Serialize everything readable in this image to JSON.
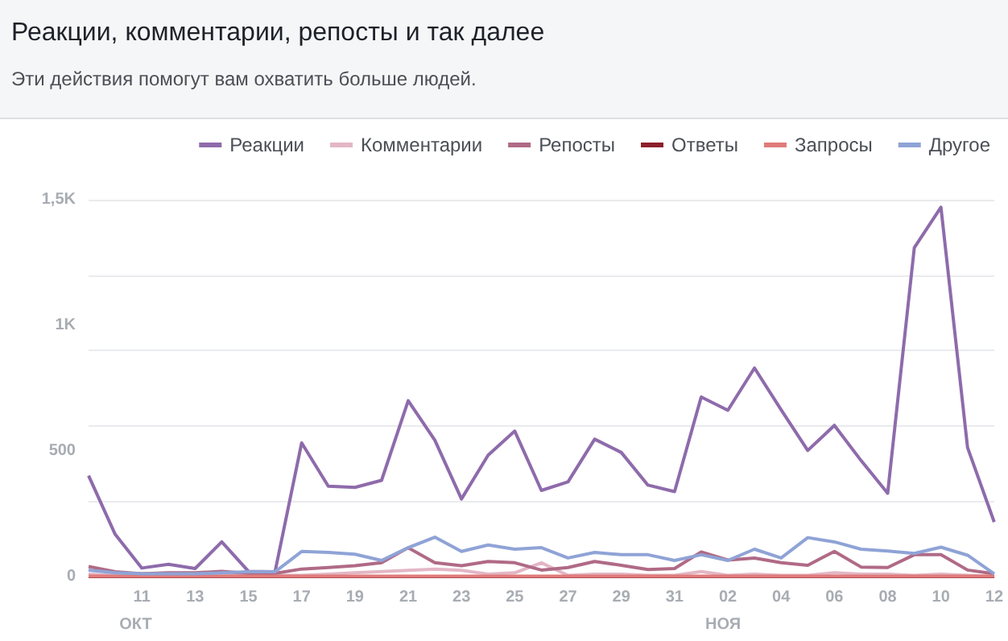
{
  "chart_data": {
    "type": "line",
    "title": "Реакции, комментарии, репосты и так далее",
    "subtitle": "Эти действия помогут вам охватить больше людей.",
    "categories": [
      null,
      null,
      "11",
      null,
      "13",
      null,
      "15",
      null,
      "17",
      null,
      "19",
      null,
      "21",
      null,
      "23",
      null,
      "25",
      null,
      "27",
      null,
      "29",
      null,
      "31",
      null,
      "02",
      null,
      "04",
      null,
      "06",
      null,
      "08",
      null,
      "10",
      null,
      "12"
    ],
    "series": [
      {
        "name": "Реакции",
        "color": "#8e6bab",
        "values": [
          402,
          168,
          34,
          49,
          32,
          138,
          21,
          19,
          532,
          360,
          355,
          383,
          700,
          543,
          309,
          483,
          579,
          343,
          377,
          547,
          494,
          364,
          338,
          715,
          662,
          830,
          664,
          502,
          602,
          462,
          332,
          1309,
          1470,
          513,
          217
        ]
      },
      {
        "name": "Комментарии",
        "color": "#e3b6c6",
        "values": [
          10,
          5,
          5,
          5,
          5,
          10,
          5,
          5,
          5,
          10,
          15,
          20,
          25,
          30,
          25,
          10,
          15,
          55,
          5,
          10,
          10,
          5,
          5,
          20,
          5,
          10,
          5,
          5,
          15,
          10,
          10,
          5,
          10,
          5,
          0
        ]
      },
      {
        "name": "Репосты",
        "color": "#b06a86",
        "values": [
          40,
          19,
          11,
          15,
          15,
          21,
          13,
          13,
          30,
          36,
          43,
          55,
          115,
          55,
          43,
          60,
          55,
          26,
          36,
          60,
          45,
          28,
          32,
          98,
          66,
          74,
          55,
          45,
          100,
          38,
          36,
          87,
          87,
          26,
          11
        ]
      },
      {
        "name": "Ответы",
        "color": "#8b1f2a",
        "values": [
          0,
          0,
          0,
          0,
          0,
          0,
          0,
          0,
          0,
          0,
          0,
          0,
          0,
          0,
          0,
          0,
          0,
          0,
          0,
          0,
          0,
          0,
          0,
          0,
          0,
          0,
          0,
          0,
          0,
          0,
          0,
          0,
          0,
          0,
          0
        ]
      },
      {
        "name": "Запросы",
        "color": "#e07b7b",
        "values": [
          2,
          2,
          2,
          2,
          2,
          2,
          2,
          2,
          2,
          2,
          2,
          2,
          2,
          2,
          2,
          2,
          2,
          2,
          2,
          2,
          2,
          2,
          2,
          2,
          2,
          2,
          2,
          2,
          2,
          2,
          2,
          2,
          2,
          2,
          2
        ]
      },
      {
        "name": "Другое",
        "color": "#8fa3d6",
        "values": [
          26,
          15,
          11,
          11,
          11,
          15,
          19,
          19,
          100,
          96,
          89,
          64,
          115,
          157,
          100,
          126,
          109,
          115,
          74,
          96,
          87,
          87,
          64,
          87,
          64,
          109,
          74,
          155,
          138,
          109,
          102,
          92,
          117,
          85,
          11
        ]
      }
    ],
    "ylim": [
      0,
      1500
    ],
    "yticks": [
      0,
      500,
      {
        "value": 1000,
        "label": "1K"
      },
      {
        "value": 1500,
        "label": "1,5K"
      }
    ],
    "annotations": [
      "ОКТ",
      "НОЯ"
    ],
    "grid": "y",
    "legend": "top right",
    "marker": "none",
    "line_style": "solid"
  }
}
